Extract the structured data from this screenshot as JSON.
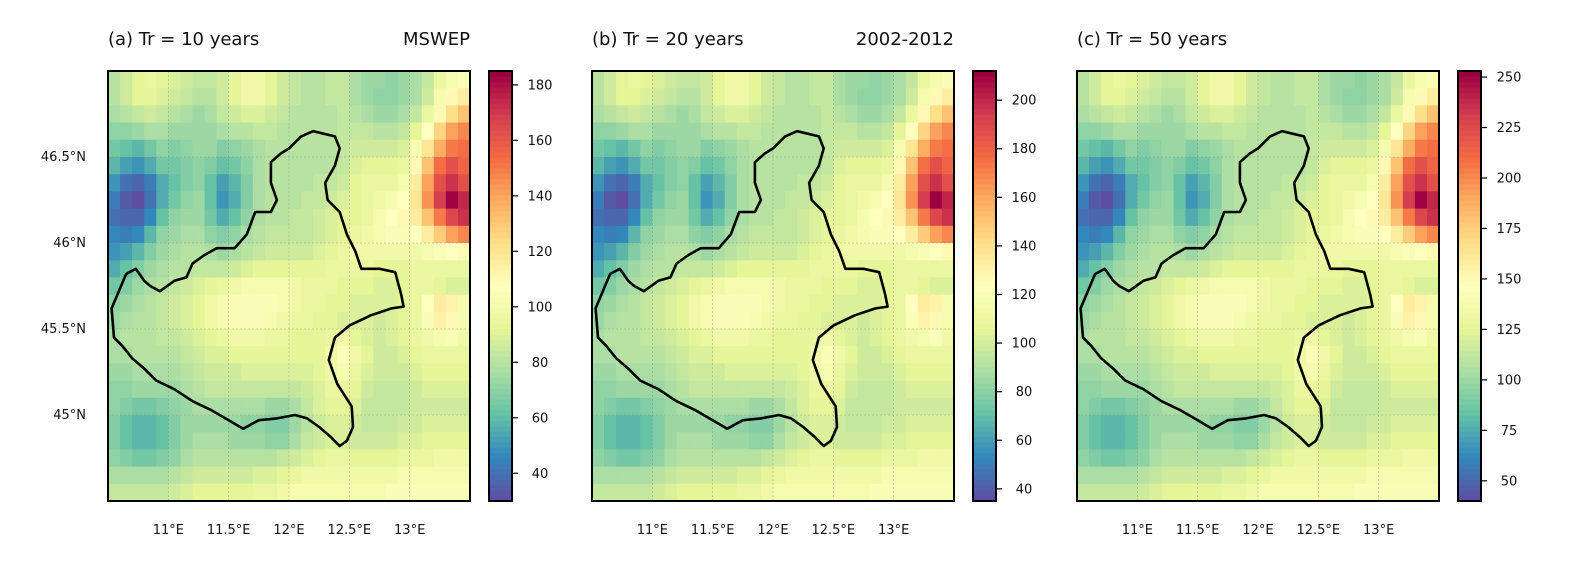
{
  "figure": {
    "source_label": "MSWEP",
    "period_label": "2002-2012"
  },
  "chart_data": [
    {
      "type": "heatmap",
      "title": "(a) Tr = 10 years",
      "corner_label_key": "source",
      "xlim": [
        10.5,
        13.5
      ],
      "ylim": [
        44.5,
        47.0
      ],
      "x_ticks": [
        11.0,
        11.5,
        12.0,
        12.5,
        13.0
      ],
      "x_tick_labels": [
        "11°E",
        "11.5°E",
        "12°E",
        "12.5°E",
        "13°E"
      ],
      "y_ticks": [
        45.0,
        45.5,
        46.0,
        46.5
      ],
      "y_tick_labels": [
        "45°N",
        "45.5°N",
        "46°N",
        "46.5°N"
      ],
      "grid": true,
      "colormap": "Spectral_r",
      "colorbar": {
        "range": [
          30,
          185
        ],
        "ticks": [
          40,
          60,
          80,
          100,
          120,
          140,
          160,
          180
        ],
        "tick_labels": [
          "40",
          "60",
          "80",
          "100",
          "120",
          "140",
          "160",
          "180"
        ]
      },
      "value_scale": {
        "min": 30,
        "max": 185
      }
    },
    {
      "type": "heatmap",
      "title": "(b) Tr = 20 years",
      "corner_label_key": "period",
      "xlim": [
        10.5,
        13.5
      ],
      "ylim": [
        44.5,
        47.0
      ],
      "x_ticks": [
        11.0,
        11.5,
        12.0,
        12.5,
        13.0
      ],
      "x_tick_labels": [
        "11°E",
        "11.5°E",
        "12°E",
        "12.5°E",
        "13°E"
      ],
      "y_ticks": [
        45.0,
        45.5,
        46.0,
        46.5
      ],
      "y_tick_labels": [],
      "grid": true,
      "colormap": "Spectral_r",
      "colorbar": {
        "range": [
          35,
          212
        ],
        "ticks": [
          40,
          60,
          80,
          100,
          120,
          140,
          160,
          180,
          200
        ],
        "tick_labels": [
          "40",
          "60",
          "80",
          "100",
          "120",
          "140",
          "160",
          "180",
          "200"
        ]
      },
      "value_scale": {
        "min": 35,
        "max": 212
      }
    },
    {
      "type": "heatmap",
      "title": "(c) Tr = 50 years",
      "corner_label_key": "",
      "xlim": [
        10.5,
        13.5
      ],
      "ylim": [
        44.5,
        47.0
      ],
      "x_ticks": [
        11.0,
        11.5,
        12.0,
        12.5,
        13.0
      ],
      "x_tick_labels": [
        "11°E",
        "11.5°E",
        "12°E",
        "12.5°E",
        "13°E"
      ],
      "y_ticks": [
        45.0,
        45.5,
        46.0,
        46.5
      ],
      "y_tick_labels": [],
      "grid": true,
      "colormap": "Spectral_r",
      "colorbar": {
        "range": [
          40,
          253
        ],
        "ticks": [
          50,
          75,
          100,
          125,
          150,
          175,
          200,
          225,
          250
        ],
        "tick_labels": [
          "50",
          "75",
          "100",
          "125",
          "150",
          "175",
          "200",
          "225",
          "250"
        ]
      },
      "value_scale": {
        "min": 40,
        "max": 253
      }
    }
  ],
  "grid_values": {
    "lon_start": 10.5,
    "lat_start": 47.0,
    "cell_size": 0.1,
    "cols": 30,
    "rows": 25,
    "normalized_rows": [
      [
        0.32,
        0.36,
        0.4,
        0.42,
        0.4,
        0.38,
        0.36,
        0.34,
        0.34,
        0.36,
        0.4,
        0.44,
        0.44,
        0.4,
        0.36,
        0.34,
        0.32,
        0.32,
        0.34,
        0.34,
        0.3,
        0.28,
        0.28,
        0.26,
        0.28,
        0.3,
        0.34,
        0.42,
        0.46,
        0.48
      ],
      [
        0.32,
        0.36,
        0.4,
        0.4,
        0.38,
        0.36,
        0.34,
        0.32,
        0.32,
        0.36,
        0.4,
        0.44,
        0.44,
        0.4,
        0.36,
        0.34,
        0.32,
        0.32,
        0.34,
        0.34,
        0.3,
        0.28,
        0.26,
        0.26,
        0.28,
        0.3,
        0.36,
        0.46,
        0.52,
        0.56
      ],
      [
        0.3,
        0.32,
        0.34,
        0.36,
        0.34,
        0.32,
        0.3,
        0.28,
        0.3,
        0.34,
        0.36,
        0.38,
        0.38,
        0.36,
        0.34,
        0.32,
        0.32,
        0.32,
        0.32,
        0.34,
        0.32,
        0.3,
        0.28,
        0.28,
        0.3,
        0.34,
        0.42,
        0.52,
        0.6,
        0.66
      ],
      [
        0.26,
        0.26,
        0.28,
        0.3,
        0.3,
        0.28,
        0.28,
        0.28,
        0.28,
        0.3,
        0.32,
        0.32,
        0.34,
        0.34,
        0.32,
        0.32,
        0.32,
        0.32,
        0.32,
        0.34,
        0.34,
        0.34,
        0.32,
        0.32,
        0.34,
        0.4,
        0.5,
        0.62,
        0.72,
        0.76
      ],
      [
        0.22,
        0.2,
        0.18,
        0.22,
        0.26,
        0.24,
        0.26,
        0.28,
        0.28,
        0.24,
        0.26,
        0.28,
        0.3,
        0.32,
        0.32,
        0.32,
        0.32,
        0.32,
        0.32,
        0.34,
        0.36,
        0.36,
        0.36,
        0.36,
        0.38,
        0.46,
        0.58,
        0.7,
        0.78,
        0.8
      ],
      [
        0.18,
        0.14,
        0.12,
        0.16,
        0.22,
        0.22,
        0.24,
        0.26,
        0.24,
        0.2,
        0.22,
        0.26,
        0.3,
        0.32,
        0.32,
        0.32,
        0.32,
        0.32,
        0.32,
        0.34,
        0.38,
        0.4,
        0.4,
        0.4,
        0.42,
        0.52,
        0.66,
        0.8,
        0.86,
        0.82
      ],
      [
        0.12,
        0.06,
        0.04,
        0.08,
        0.16,
        0.2,
        0.24,
        0.26,
        0.2,
        0.14,
        0.18,
        0.24,
        0.3,
        0.32,
        0.32,
        0.32,
        0.32,
        0.34,
        0.34,
        0.36,
        0.4,
        0.42,
        0.42,
        0.42,
        0.46,
        0.56,
        0.72,
        0.86,
        0.92,
        0.86
      ],
      [
        0.08,
        0.02,
        0.0,
        0.06,
        0.16,
        0.22,
        0.26,
        0.28,
        0.2,
        0.12,
        0.16,
        0.24,
        0.3,
        0.32,
        0.32,
        0.32,
        0.34,
        0.34,
        0.36,
        0.38,
        0.4,
        0.42,
        0.44,
        0.46,
        0.5,
        0.58,
        0.74,
        0.9,
        1.0,
        0.94
      ],
      [
        0.06,
        0.04,
        0.04,
        0.1,
        0.2,
        0.26,
        0.28,
        0.28,
        0.22,
        0.16,
        0.2,
        0.26,
        0.3,
        0.32,
        0.32,
        0.34,
        0.34,
        0.36,
        0.38,
        0.4,
        0.4,
        0.42,
        0.46,
        0.5,
        0.52,
        0.56,
        0.66,
        0.78,
        0.88,
        0.92
      ],
      [
        0.1,
        0.08,
        0.1,
        0.18,
        0.26,
        0.28,
        0.3,
        0.3,
        0.26,
        0.24,
        0.26,
        0.3,
        0.32,
        0.34,
        0.34,
        0.34,
        0.34,
        0.36,
        0.38,
        0.4,
        0.42,
        0.44,
        0.46,
        0.48,
        0.48,
        0.5,
        0.56,
        0.64,
        0.72,
        0.76
      ],
      [
        0.12,
        0.14,
        0.18,
        0.24,
        0.28,
        0.3,
        0.32,
        0.32,
        0.3,
        0.28,
        0.3,
        0.32,
        0.34,
        0.36,
        0.36,
        0.36,
        0.36,
        0.38,
        0.4,
        0.42,
        0.44,
        0.44,
        0.44,
        0.44,
        0.44,
        0.44,
        0.46,
        0.48,
        0.5,
        0.52
      ],
      [
        0.16,
        0.2,
        0.24,
        0.28,
        0.3,
        0.32,
        0.32,
        0.34,
        0.34,
        0.34,
        0.36,
        0.38,
        0.4,
        0.4,
        0.4,
        0.4,
        0.4,
        0.4,
        0.42,
        0.42,
        0.42,
        0.42,
        0.4,
        0.4,
        0.4,
        0.42,
        0.42,
        0.42,
        0.42,
        0.42
      ],
      [
        0.22,
        0.24,
        0.28,
        0.3,
        0.32,
        0.34,
        0.36,
        0.38,
        0.4,
        0.42,
        0.44,
        0.46,
        0.46,
        0.46,
        0.46,
        0.44,
        0.42,
        0.42,
        0.42,
        0.4,
        0.4,
        0.4,
        0.38,
        0.38,
        0.4,
        0.42,
        0.42,
        0.4,
        0.38,
        0.38
      ],
      [
        0.26,
        0.28,
        0.3,
        0.32,
        0.34,
        0.36,
        0.38,
        0.4,
        0.44,
        0.46,
        0.48,
        0.48,
        0.48,
        0.48,
        0.46,
        0.44,
        0.42,
        0.42,
        0.4,
        0.4,
        0.38,
        0.38,
        0.38,
        0.38,
        0.4,
        0.42,
        0.5,
        0.56,
        0.54,
        0.46
      ],
      [
        0.28,
        0.3,
        0.32,
        0.32,
        0.34,
        0.36,
        0.38,
        0.4,
        0.44,
        0.46,
        0.48,
        0.48,
        0.48,
        0.46,
        0.44,
        0.42,
        0.42,
        0.4,
        0.4,
        0.38,
        0.38,
        0.38,
        0.36,
        0.38,
        0.4,
        0.42,
        0.48,
        0.54,
        0.52,
        0.46
      ],
      [
        0.3,
        0.32,
        0.32,
        0.32,
        0.34,
        0.34,
        0.36,
        0.38,
        0.4,
        0.42,
        0.44,
        0.44,
        0.44,
        0.42,
        0.42,
        0.4,
        0.4,
        0.4,
        0.42,
        0.44,
        0.4,
        0.38,
        0.36,
        0.38,
        0.4,
        0.42,
        0.44,
        0.46,
        0.48,
        0.44
      ],
      [
        0.3,
        0.3,
        0.32,
        0.32,
        0.32,
        0.32,
        0.34,
        0.36,
        0.38,
        0.38,
        0.4,
        0.4,
        0.4,
        0.4,
        0.4,
        0.4,
        0.4,
        0.4,
        0.44,
        0.48,
        0.44,
        0.4,
        0.36,
        0.36,
        0.38,
        0.4,
        0.42,
        0.42,
        0.42,
        0.42
      ],
      [
        0.28,
        0.28,
        0.3,
        0.3,
        0.3,
        0.3,
        0.32,
        0.34,
        0.36,
        0.36,
        0.36,
        0.38,
        0.38,
        0.38,
        0.38,
        0.38,
        0.38,
        0.4,
        0.44,
        0.46,
        0.42,
        0.38,
        0.36,
        0.36,
        0.36,
        0.38,
        0.4,
        0.4,
        0.4,
        0.4
      ],
      [
        0.26,
        0.26,
        0.28,
        0.28,
        0.28,
        0.28,
        0.3,
        0.32,
        0.34,
        0.34,
        0.34,
        0.34,
        0.34,
        0.34,
        0.34,
        0.34,
        0.36,
        0.38,
        0.42,
        0.42,
        0.4,
        0.36,
        0.34,
        0.34,
        0.34,
        0.36,
        0.38,
        0.38,
        0.38,
        0.38
      ],
      [
        0.26,
        0.24,
        0.22,
        0.22,
        0.24,
        0.26,
        0.28,
        0.3,
        0.3,
        0.3,
        0.3,
        0.3,
        0.3,
        0.28,
        0.28,
        0.3,
        0.34,
        0.38,
        0.4,
        0.4,
        0.38,
        0.34,
        0.34,
        0.34,
        0.34,
        0.36,
        0.36,
        0.36,
        0.36,
        0.36
      ],
      [
        0.24,
        0.2,
        0.18,
        0.18,
        0.2,
        0.24,
        0.28,
        0.28,
        0.28,
        0.28,
        0.28,
        0.26,
        0.26,
        0.24,
        0.24,
        0.28,
        0.32,
        0.36,
        0.38,
        0.38,
        0.36,
        0.34,
        0.34,
        0.34,
        0.36,
        0.36,
        0.38,
        0.38,
        0.38,
        0.38
      ],
      [
        0.24,
        0.2,
        0.18,
        0.18,
        0.2,
        0.24,
        0.28,
        0.3,
        0.3,
        0.3,
        0.28,
        0.28,
        0.28,
        0.26,
        0.26,
        0.3,
        0.34,
        0.36,
        0.38,
        0.38,
        0.36,
        0.36,
        0.36,
        0.36,
        0.38,
        0.38,
        0.4,
        0.4,
        0.4,
        0.4
      ],
      [
        0.26,
        0.24,
        0.22,
        0.22,
        0.24,
        0.26,
        0.3,
        0.32,
        0.32,
        0.32,
        0.32,
        0.32,
        0.32,
        0.32,
        0.34,
        0.36,
        0.38,
        0.4,
        0.42,
        0.42,
        0.4,
        0.4,
        0.4,
        0.4,
        0.42,
        0.42,
        0.42,
        0.44,
        0.44,
        0.44
      ],
      [
        0.3,
        0.3,
        0.3,
        0.3,
        0.3,
        0.32,
        0.34,
        0.36,
        0.36,
        0.36,
        0.36,
        0.36,
        0.38,
        0.38,
        0.4,
        0.42,
        0.44,
        0.44,
        0.44,
        0.44,
        0.44,
        0.44,
        0.44,
        0.44,
        0.46,
        0.46,
        0.46,
        0.46,
        0.46,
        0.46
      ],
      [
        0.34,
        0.34,
        0.34,
        0.34,
        0.34,
        0.36,
        0.38,
        0.4,
        0.4,
        0.4,
        0.4,
        0.4,
        0.42,
        0.42,
        0.44,
        0.46,
        0.46,
        0.46,
        0.46,
        0.46,
        0.46,
        0.46,
        0.46,
        0.48,
        0.48,
        0.48,
        0.48,
        0.48,
        0.48,
        0.48
      ]
    ]
  },
  "region_outline": {
    "lonlat": [
      [
        10.65,
        45.82
      ],
      [
        10.53,
        45.62
      ],
      [
        10.55,
        45.45
      ],
      [
        10.62,
        45.4
      ],
      [
        10.7,
        45.33
      ],
      [
        10.8,
        45.27
      ],
      [
        10.9,
        45.2
      ],
      [
        11.05,
        45.15
      ],
      [
        11.2,
        45.08
      ],
      [
        11.35,
        45.03
      ],
      [
        11.5,
        44.97
      ],
      [
        11.62,
        44.92
      ],
      [
        11.75,
        44.97
      ],
      [
        11.9,
        44.98
      ],
      [
        12.05,
        45.0
      ],
      [
        12.15,
        44.98
      ],
      [
        12.25,
        44.93
      ],
      [
        12.35,
        44.87
      ],
      [
        12.42,
        44.82
      ],
      [
        12.48,
        44.85
      ],
      [
        12.53,
        44.93
      ],
      [
        12.52,
        45.05
      ],
      [
        12.4,
        45.18
      ],
      [
        12.33,
        45.32
      ],
      [
        12.38,
        45.45
      ],
      [
        12.5,
        45.52
      ],
      [
        12.68,
        45.58
      ],
      [
        12.85,
        45.62
      ],
      [
        12.95,
        45.63
      ],
      [
        12.93,
        45.7
      ],
      [
        12.88,
        45.83
      ],
      [
        12.75,
        45.85
      ],
      [
        12.6,
        45.85
      ],
      [
        12.55,
        45.95
      ],
      [
        12.48,
        46.05
      ],
      [
        12.42,
        46.18
      ],
      [
        12.32,
        46.25
      ],
      [
        12.3,
        46.35
      ],
      [
        12.38,
        46.45
      ],
      [
        12.42,
        46.55
      ],
      [
        12.38,
        46.62
      ],
      [
        12.2,
        46.65
      ],
      [
        12.1,
        46.62
      ],
      [
        12.0,
        46.55
      ],
      [
        11.93,
        46.52
      ],
      [
        11.85,
        46.47
      ],
      [
        11.85,
        46.35
      ],
      [
        11.9,
        46.25
      ],
      [
        11.85,
        46.18
      ],
      [
        11.72,
        46.18
      ],
      [
        11.65,
        46.05
      ],
      [
        11.55,
        45.97
      ],
      [
        11.4,
        45.97
      ],
      [
        11.3,
        45.93
      ],
      [
        11.2,
        45.88
      ],
      [
        11.15,
        45.8
      ],
      [
        11.05,
        45.78
      ],
      [
        10.93,
        45.72
      ],
      [
        10.85,
        45.75
      ],
      [
        10.8,
        45.78
      ],
      [
        10.73,
        45.85
      ],
      [
        10.65,
        45.82
      ]
    ]
  }
}
